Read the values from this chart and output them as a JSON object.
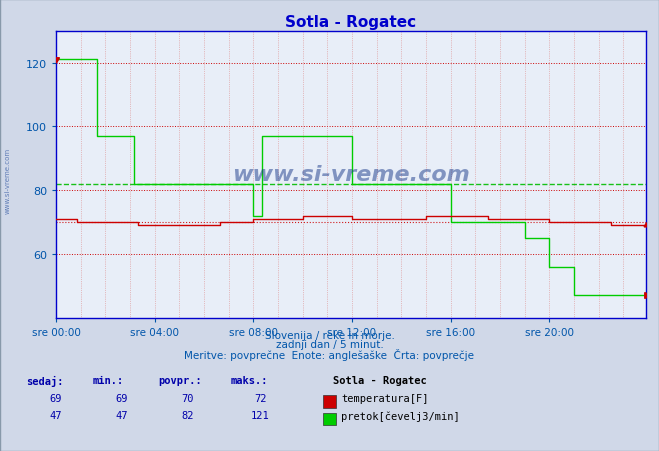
{
  "title": "Sotla - Rogatec",
  "title_color": "#0000cc",
  "bg_color": "#d0d8e8",
  "plot_bg_color": "#e8eef8",
  "grid_color_v": "#dd8888",
  "grid_color_h": "#cc0000",
  "xlabel_color": "#0055aa",
  "ylabel_color": "#0055aa",
  "axis_color": "#0000cc",
  "xlim": [
    0,
    287
  ],
  "ylim": [
    40,
    130
  ],
  "yticks": [
    60,
    80,
    100,
    120
  ],
  "xtick_labels": [
    "sre 00:00",
    "sre 04:00",
    "sre 08:00",
    "sre 12:00",
    "sre 16:00",
    "sre 20:00"
  ],
  "xtick_positions": [
    0,
    48,
    96,
    144,
    192,
    240
  ],
  "avg_flow": 82,
  "avg_temp": 70,
  "subtitle1": "Slovenija / reke in morje.",
  "subtitle2": "zadnji dan / 5 minut.",
  "subtitle3": "Meritve: povprečne  Enote: anglešaške  Črta: povprečje",
  "legend_title": "Sotla - Rogatec",
  "legend_items": [
    {
      "label": "temperatura[F]",
      "color": "#cc0000"
    },
    {
      "label": "pretok[čevelj3/min]",
      "color": "#00cc00"
    }
  ],
  "table_headers": [
    "sedaj:",
    "min.:",
    "povpr.:",
    "maks.:"
  ],
  "table_data": [
    [
      69,
      69,
      70,
      72
    ],
    [
      47,
      47,
      82,
      121
    ]
  ],
  "flow_steps": [
    [
      0,
      121
    ],
    [
      20,
      121
    ],
    [
      20,
      97
    ],
    [
      38,
      97
    ],
    [
      38,
      82
    ],
    [
      96,
      82
    ],
    [
      96,
      72
    ],
    [
      100,
      72
    ],
    [
      100,
      97
    ],
    [
      144,
      97
    ],
    [
      144,
      82
    ],
    [
      192,
      82
    ],
    [
      192,
      70
    ],
    [
      228,
      70
    ],
    [
      228,
      65
    ],
    [
      240,
      65
    ],
    [
      240,
      56
    ],
    [
      252,
      56
    ],
    [
      252,
      47
    ],
    [
      287,
      47
    ]
  ],
  "temp_steps": [
    [
      0,
      71
    ],
    [
      10,
      71
    ],
    [
      10,
      70
    ],
    [
      40,
      70
    ],
    [
      40,
      69
    ],
    [
      80,
      69
    ],
    [
      80,
      70
    ],
    [
      96,
      70
    ],
    [
      96,
      71
    ],
    [
      120,
      71
    ],
    [
      120,
      72
    ],
    [
      144,
      72
    ],
    [
      144,
      71
    ],
    [
      180,
      71
    ],
    [
      180,
      72
    ],
    [
      210,
      72
    ],
    [
      210,
      71
    ],
    [
      240,
      71
    ],
    [
      240,
      70
    ],
    [
      270,
      70
    ],
    [
      270,
      69
    ],
    [
      287,
      69
    ]
  ]
}
